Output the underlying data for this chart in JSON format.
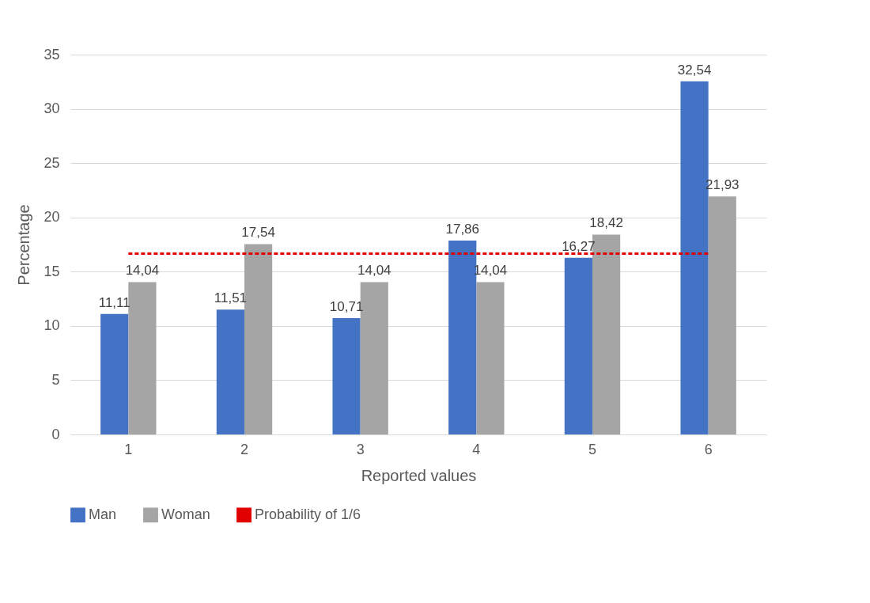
{
  "chart_data": {
    "type": "bar",
    "xlabel": "Reported values",
    "ylabel": "Percentage",
    "categories": [
      "1",
      "2",
      "3",
      "4",
      "5",
      "6"
    ],
    "series": [
      {
        "name": "Man",
        "color": "#4472c4",
        "values": [
          11.11,
          11.51,
          10.71,
          17.86,
          16.27,
          32.54
        ],
        "value_labels": [
          "11,11",
          "11,51",
          "10,71",
          "17,86",
          "16,27",
          "32,54"
        ]
      },
      {
        "name": "Woman",
        "color": "#a5a5a5",
        "values": [
          14.04,
          17.54,
          14.04,
          14.04,
          18.42,
          21.93
        ],
        "value_labels": [
          "14,04",
          "17,54",
          "14,04",
          "14,04",
          "18,42",
          "21,93"
        ]
      },
      {
        "name": "Probability of 1/6",
        "type": "line",
        "color": "#e00000",
        "line_style": "dashed",
        "values": [
          16.67,
          16.67,
          16.67,
          16.67,
          16.67,
          16.67
        ]
      }
    ],
    "ylim": [
      0,
      35
    ],
    "yticks": [
      0,
      5,
      10,
      15,
      20,
      25,
      30,
      35
    ],
    "grid": "y",
    "legend": "bottom"
  }
}
